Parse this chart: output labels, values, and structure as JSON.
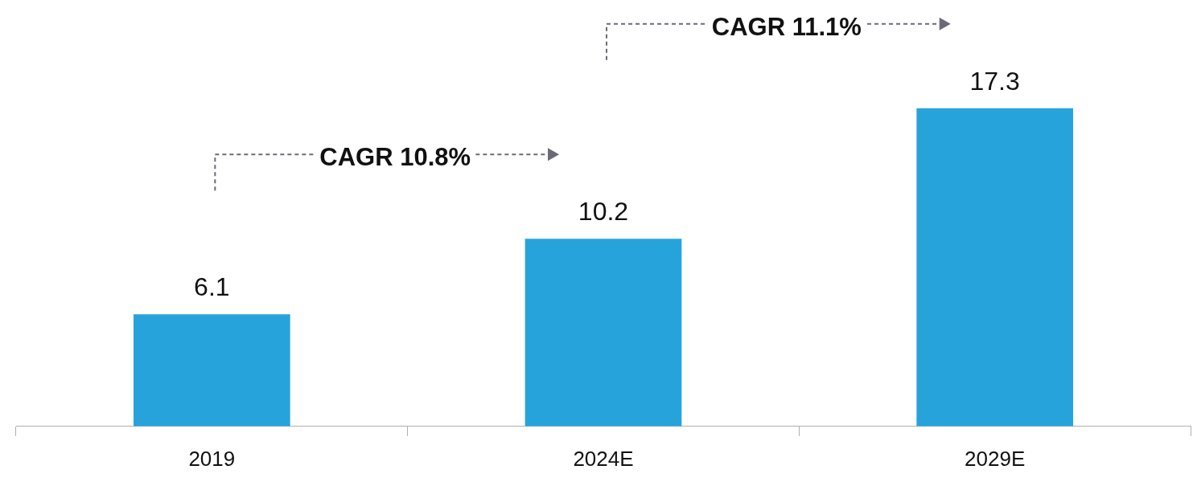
{
  "chart_data": {
    "type": "bar",
    "categories": [
      "2019",
      "2024E",
      "2029E"
    ],
    "values": [
      6.1,
      10.2,
      17.3
    ],
    "color": "#27a3dc",
    "data_labels": true,
    "annotations": [
      "CAGR 10.8%",
      "CAGR 11.1%"
    ]
  }
}
